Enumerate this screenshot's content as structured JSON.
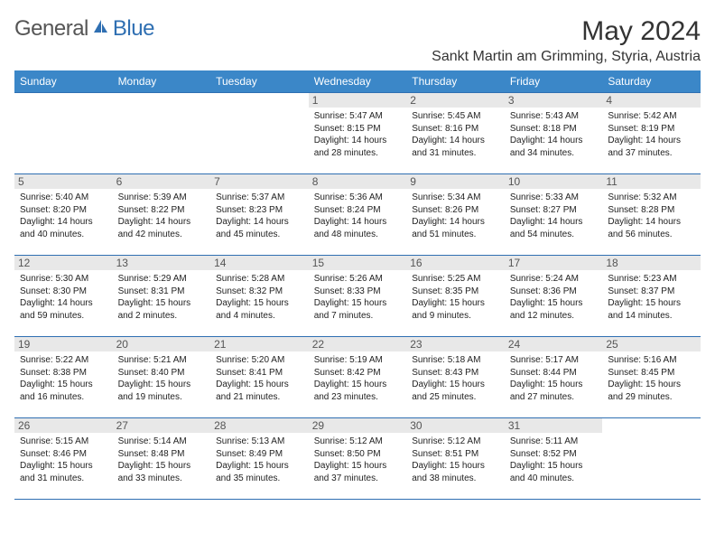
{
  "logo": {
    "general": "General",
    "blue": "Blue"
  },
  "title": "May 2024",
  "location": "Sankt Martin am Grimming, Styria, Austria",
  "colors": {
    "header_bg": "#3b87c8",
    "border": "#2f6fb2",
    "daynum_bg": "#e8e8e8",
    "text": "#222222",
    "logo_gray": "#555555",
    "logo_blue": "#2f6fb2"
  },
  "weekdays": [
    "Sunday",
    "Monday",
    "Tuesday",
    "Wednesday",
    "Thursday",
    "Friday",
    "Saturday"
  ],
  "weeks": [
    [
      {
        "n": "",
        "sr": "",
        "ss": "",
        "dl": ""
      },
      {
        "n": "",
        "sr": "",
        "ss": "",
        "dl": ""
      },
      {
        "n": "",
        "sr": "",
        "ss": "",
        "dl": ""
      },
      {
        "n": "1",
        "sr": "Sunrise: 5:47 AM",
        "ss": "Sunset: 8:15 PM",
        "dl": "Daylight: 14 hours and 28 minutes."
      },
      {
        "n": "2",
        "sr": "Sunrise: 5:45 AM",
        "ss": "Sunset: 8:16 PM",
        "dl": "Daylight: 14 hours and 31 minutes."
      },
      {
        "n": "3",
        "sr": "Sunrise: 5:43 AM",
        "ss": "Sunset: 8:18 PM",
        "dl": "Daylight: 14 hours and 34 minutes."
      },
      {
        "n": "4",
        "sr": "Sunrise: 5:42 AM",
        "ss": "Sunset: 8:19 PM",
        "dl": "Daylight: 14 hours and 37 minutes."
      }
    ],
    [
      {
        "n": "5",
        "sr": "Sunrise: 5:40 AM",
        "ss": "Sunset: 8:20 PM",
        "dl": "Daylight: 14 hours and 40 minutes."
      },
      {
        "n": "6",
        "sr": "Sunrise: 5:39 AM",
        "ss": "Sunset: 8:22 PM",
        "dl": "Daylight: 14 hours and 42 minutes."
      },
      {
        "n": "7",
        "sr": "Sunrise: 5:37 AM",
        "ss": "Sunset: 8:23 PM",
        "dl": "Daylight: 14 hours and 45 minutes."
      },
      {
        "n": "8",
        "sr": "Sunrise: 5:36 AM",
        "ss": "Sunset: 8:24 PM",
        "dl": "Daylight: 14 hours and 48 minutes."
      },
      {
        "n": "9",
        "sr": "Sunrise: 5:34 AM",
        "ss": "Sunset: 8:26 PM",
        "dl": "Daylight: 14 hours and 51 minutes."
      },
      {
        "n": "10",
        "sr": "Sunrise: 5:33 AM",
        "ss": "Sunset: 8:27 PM",
        "dl": "Daylight: 14 hours and 54 minutes."
      },
      {
        "n": "11",
        "sr": "Sunrise: 5:32 AM",
        "ss": "Sunset: 8:28 PM",
        "dl": "Daylight: 14 hours and 56 minutes."
      }
    ],
    [
      {
        "n": "12",
        "sr": "Sunrise: 5:30 AM",
        "ss": "Sunset: 8:30 PM",
        "dl": "Daylight: 14 hours and 59 minutes."
      },
      {
        "n": "13",
        "sr": "Sunrise: 5:29 AM",
        "ss": "Sunset: 8:31 PM",
        "dl": "Daylight: 15 hours and 2 minutes."
      },
      {
        "n": "14",
        "sr": "Sunrise: 5:28 AM",
        "ss": "Sunset: 8:32 PM",
        "dl": "Daylight: 15 hours and 4 minutes."
      },
      {
        "n": "15",
        "sr": "Sunrise: 5:26 AM",
        "ss": "Sunset: 8:33 PM",
        "dl": "Daylight: 15 hours and 7 minutes."
      },
      {
        "n": "16",
        "sr": "Sunrise: 5:25 AM",
        "ss": "Sunset: 8:35 PM",
        "dl": "Daylight: 15 hours and 9 minutes."
      },
      {
        "n": "17",
        "sr": "Sunrise: 5:24 AM",
        "ss": "Sunset: 8:36 PM",
        "dl": "Daylight: 15 hours and 12 minutes."
      },
      {
        "n": "18",
        "sr": "Sunrise: 5:23 AM",
        "ss": "Sunset: 8:37 PM",
        "dl": "Daylight: 15 hours and 14 minutes."
      }
    ],
    [
      {
        "n": "19",
        "sr": "Sunrise: 5:22 AM",
        "ss": "Sunset: 8:38 PM",
        "dl": "Daylight: 15 hours and 16 minutes."
      },
      {
        "n": "20",
        "sr": "Sunrise: 5:21 AM",
        "ss": "Sunset: 8:40 PM",
        "dl": "Daylight: 15 hours and 19 minutes."
      },
      {
        "n": "21",
        "sr": "Sunrise: 5:20 AM",
        "ss": "Sunset: 8:41 PM",
        "dl": "Daylight: 15 hours and 21 minutes."
      },
      {
        "n": "22",
        "sr": "Sunrise: 5:19 AM",
        "ss": "Sunset: 8:42 PM",
        "dl": "Daylight: 15 hours and 23 minutes."
      },
      {
        "n": "23",
        "sr": "Sunrise: 5:18 AM",
        "ss": "Sunset: 8:43 PM",
        "dl": "Daylight: 15 hours and 25 minutes."
      },
      {
        "n": "24",
        "sr": "Sunrise: 5:17 AM",
        "ss": "Sunset: 8:44 PM",
        "dl": "Daylight: 15 hours and 27 minutes."
      },
      {
        "n": "25",
        "sr": "Sunrise: 5:16 AM",
        "ss": "Sunset: 8:45 PM",
        "dl": "Daylight: 15 hours and 29 minutes."
      }
    ],
    [
      {
        "n": "26",
        "sr": "Sunrise: 5:15 AM",
        "ss": "Sunset: 8:46 PM",
        "dl": "Daylight: 15 hours and 31 minutes."
      },
      {
        "n": "27",
        "sr": "Sunrise: 5:14 AM",
        "ss": "Sunset: 8:48 PM",
        "dl": "Daylight: 15 hours and 33 minutes."
      },
      {
        "n": "28",
        "sr": "Sunrise: 5:13 AM",
        "ss": "Sunset: 8:49 PM",
        "dl": "Daylight: 15 hours and 35 minutes."
      },
      {
        "n": "29",
        "sr": "Sunrise: 5:12 AM",
        "ss": "Sunset: 8:50 PM",
        "dl": "Daylight: 15 hours and 37 minutes."
      },
      {
        "n": "30",
        "sr": "Sunrise: 5:12 AM",
        "ss": "Sunset: 8:51 PM",
        "dl": "Daylight: 15 hours and 38 minutes."
      },
      {
        "n": "31",
        "sr": "Sunrise: 5:11 AM",
        "ss": "Sunset: 8:52 PM",
        "dl": "Daylight: 15 hours and 40 minutes."
      },
      {
        "n": "",
        "sr": "",
        "ss": "",
        "dl": ""
      }
    ]
  ]
}
